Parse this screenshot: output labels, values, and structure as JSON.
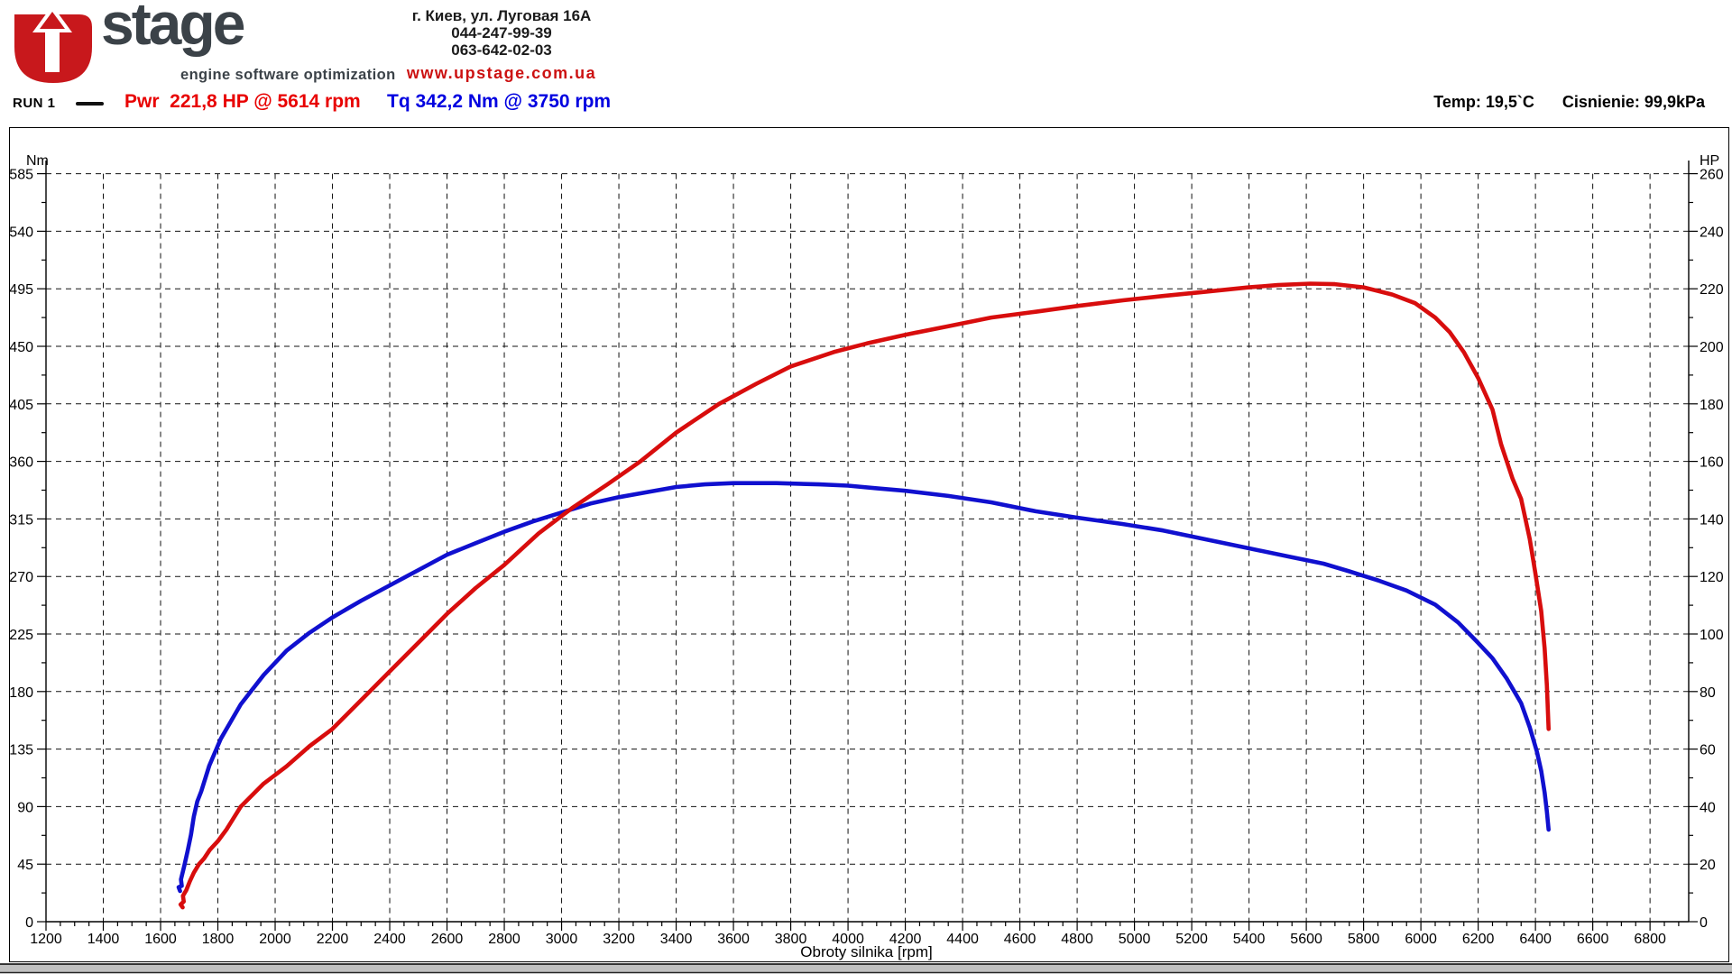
{
  "header": {
    "logo": {
      "u_letter": "U",
      "stage_text": "stage",
      "tagline": "engine software optimization"
    },
    "contact": {
      "address": "г. Киев, ул. Луговая 16А",
      "phone1": "044-247-99-39",
      "phone2": "063-642-02-03",
      "website": "www.upstage.com.ua"
    },
    "run_label": "RUN 1",
    "power_peak": "Pwr  221,8 HP @ 5614 rpm",
    "torque_peak": "Tq 342,2 Nm @ 3750 rpm",
    "temp": "Temp: 19,5`C",
    "pressure": "Cisnienie: 99,9kPa"
  },
  "colors": {
    "power_curve": "#d80d0d",
    "torque_curve": "#1010cf",
    "logo_red": "#c8181c",
    "logo_gray": "#3b4248",
    "grid": "#111111",
    "window_strip": "#c0c0c0"
  },
  "chart_data": {
    "type": "line",
    "xlabel": "Obroty silnika [rpm]",
    "x_axis": {
      "min": 1200,
      "max": 6800,
      "step": 200,
      "minor_step": 50
    },
    "left_axis": {
      "label": "Nm",
      "min": 0,
      "max": 585,
      "step": 45
    },
    "right_axis": {
      "label": "HP",
      "min": 0,
      "max": 260,
      "step": 20
    },
    "grid": "dashed",
    "legend_position": "header-row",
    "series": [
      {
        "name": "Torque",
        "axis": "left",
        "unit": "Nm",
        "peak": "342,2 Nm @ 3750 rpm",
        "points": [
          [
            1668,
            24
          ],
          [
            1663,
            27
          ],
          [
            1674,
            28
          ],
          [
            1671,
            33
          ],
          [
            1683,
            44
          ],
          [
            1695,
            56
          ],
          [
            1706,
            68
          ],
          [
            1716,
            82
          ],
          [
            1728,
            94
          ],
          [
            1742,
            102
          ],
          [
            1770,
            122
          ],
          [
            1810,
            143
          ],
          [
            1880,
            170
          ],
          [
            1960,
            193
          ],
          [
            2040,
            212
          ],
          [
            2120,
            226
          ],
          [
            2200,
            238
          ],
          [
            2300,
            251
          ],
          [
            2400,
            263
          ],
          [
            2500,
            275
          ],
          [
            2600,
            287
          ],
          [
            2700,
            296
          ],
          [
            2800,
            305
          ],
          [
            2900,
            313
          ],
          [
            3000,
            320
          ],
          [
            3100,
            327
          ],
          [
            3200,
            332
          ],
          [
            3300,
            336
          ],
          [
            3400,
            340
          ],
          [
            3500,
            342
          ],
          [
            3600,
            343
          ],
          [
            3750,
            343
          ],
          [
            3900,
            342
          ],
          [
            4000,
            341
          ],
          [
            4100,
            339
          ],
          [
            4200,
            337
          ],
          [
            4350,
            333
          ],
          [
            4500,
            328
          ],
          [
            4655,
            321
          ],
          [
            4800,
            316
          ],
          [
            4960,
            311
          ],
          [
            5100,
            306
          ],
          [
            5250,
            299
          ],
          [
            5400,
            292
          ],
          [
            5550,
            285
          ],
          [
            5660,
            280
          ],
          [
            5750,
            274
          ],
          [
            5850,
            267
          ],
          [
            5950,
            259
          ],
          [
            6050,
            248
          ],
          [
            6130,
            234
          ],
          [
            6200,
            218
          ],
          [
            6250,
            206
          ],
          [
            6300,
            190
          ],
          [
            6350,
            171
          ],
          [
            6380,
            152
          ],
          [
            6405,
            133
          ],
          [
            6420,
            118
          ],
          [
            6432,
            101
          ],
          [
            6440,
            86
          ],
          [
            6446,
            72
          ]
        ]
      },
      {
        "name": "Power",
        "axis": "right",
        "unit": "HP",
        "peak": "221,8 HP @ 5614 rpm",
        "points": [
          [
            1677,
            5
          ],
          [
            1670,
            6
          ],
          [
            1681,
            7
          ],
          [
            1678,
            9
          ],
          [
            1690,
            11
          ],
          [
            1702,
            14
          ],
          [
            1716,
            17
          ],
          [
            1734,
            20
          ],
          [
            1752,
            22
          ],
          [
            1772,
            25
          ],
          [
            1800,
            28
          ],
          [
            1830,
            32
          ],
          [
            1880,
            40
          ],
          [
            1960,
            48
          ],
          [
            2040,
            54
          ],
          [
            2120,
            61
          ],
          [
            2200,
            67
          ],
          [
            2300,
            77
          ],
          [
            2400,
            87
          ],
          [
            2500,
            97
          ],
          [
            2600,
            107
          ],
          [
            2700,
            116
          ],
          [
            2800,
            124
          ],
          [
            2920,
            135
          ],
          [
            3040,
            144
          ],
          [
            3160,
            152
          ],
          [
            3275,
            160
          ],
          [
            3400,
            170
          ],
          [
            3460,
            174
          ],
          [
            3550,
            180
          ],
          [
            3680,
            187
          ],
          [
            3800,
            193
          ],
          [
            3950,
            198
          ],
          [
            4066,
            201
          ],
          [
            4200,
            204
          ],
          [
            4350,
            207
          ],
          [
            4500,
            210
          ],
          [
            4655,
            212
          ],
          [
            4800,
            214
          ],
          [
            4960,
            216
          ],
          [
            5100,
            217.5
          ],
          [
            5250,
            219
          ],
          [
            5400,
            220.5
          ],
          [
            5500,
            221.3
          ],
          [
            5614,
            221.8
          ],
          [
            5700,
            221.6
          ],
          [
            5800,
            220.5
          ],
          [
            5900,
            218
          ],
          [
            5980,
            215
          ],
          [
            6050,
            210
          ],
          [
            6100,
            205
          ],
          [
            6150,
            198
          ],
          [
            6200,
            189
          ],
          [
            6250,
            178
          ],
          [
            6280,
            166
          ],
          [
            6320,
            154
          ],
          [
            6350,
            147
          ],
          [
            6380,
            133
          ],
          [
            6400,
            121
          ],
          [
            6420,
            108
          ],
          [
            6432,
            95
          ],
          [
            6440,
            82
          ],
          [
            6446,
            67
          ]
        ]
      }
    ]
  }
}
